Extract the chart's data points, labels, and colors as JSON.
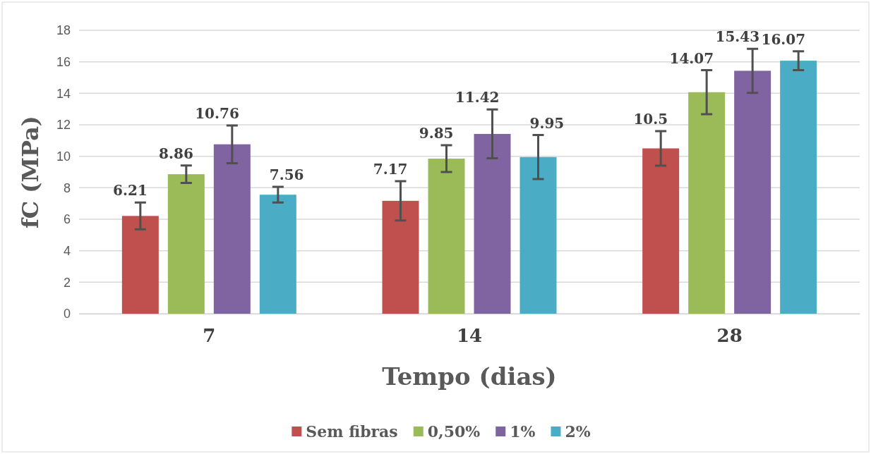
{
  "chart_data": {
    "type": "bar",
    "xlabel": "Tempo (dias)",
    "ylabel": "fC (MPa)",
    "categories": [
      "7",
      "14",
      "28"
    ],
    "series": [
      {
        "name": "Sem fibras",
        "color": "#c0504d",
        "values": [
          6.21,
          7.17,
          10.5
        ],
        "errors": [
          0.85,
          1.25,
          1.1
        ]
      },
      {
        "name": "0,50%",
        "color": "#9bbb59",
        "values": [
          8.86,
          9.85,
          14.07
        ],
        "errors": [
          0.55,
          0.85,
          1.4
        ]
      },
      {
        "name": "1%",
        "color": "#8064a2",
        "values": [
          10.76,
          11.42,
          15.43
        ],
        "errors": [
          1.2,
          1.55,
          1.4
        ]
      },
      {
        "name": "2%",
        "color": "#4bacc6",
        "values": [
          7.56,
          9.95,
          16.07
        ],
        "errors": [
          0.5,
          1.4,
          0.6
        ]
      }
    ],
    "ylim": [
      0,
      18
    ],
    "yticks": [
      0,
      2,
      4,
      6,
      8,
      10,
      12,
      14,
      16,
      18
    ],
    "grid": "y",
    "legend": "bottom",
    "data_labels": true
  }
}
